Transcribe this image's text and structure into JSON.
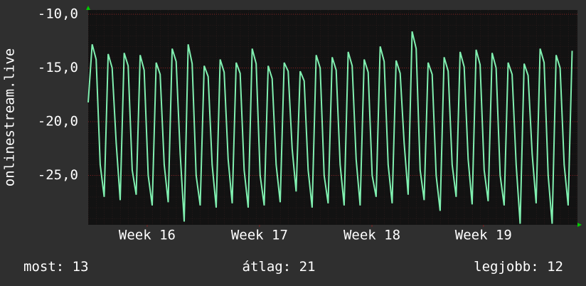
{
  "chart_data": {
    "type": "line",
    "y_label": "onlinestream.live",
    "x": [
      0,
      6,
      12,
      18,
      24,
      30,
      36,
      42,
      48,
      54,
      60,
      66,
      72,
      78,
      84,
      90,
      96,
      102,
      108,
      114,
      120,
      126,
      132,
      138,
      144,
      150,
      156,
      162,
      168,
      174,
      180,
      186,
      192,
      198,
      204,
      210,
      216,
      222,
      228,
      234,
      240,
      246,
      252,
      258,
      264,
      270,
      276,
      282,
      288,
      294,
      300,
      306,
      312,
      318,
      324,
      330,
      336,
      342,
      348,
      354,
      360,
      366,
      372,
      378,
      384,
      390,
      396,
      402,
      408,
      414,
      420,
      426,
      432,
      438,
      444,
      450,
      456,
      462,
      468,
      474,
      480,
      486,
      492,
      498,
      504,
      510,
      516,
      522,
      528,
      534,
      540,
      546,
      552,
      558,
      564,
      570,
      576,
      582,
      588,
      594,
      600,
      606,
      612,
      618,
      624,
      630,
      636,
      642,
      648,
      654,
      660,
      666,
      672,
      678,
      684,
      690,
      696,
      702,
      708,
      714,
      720,
      726
    ],
    "xlim": [
      0,
      734
    ],
    "xticks": [
      {
        "value": 88.5,
        "label": "Week 16"
      },
      {
        "value": 257,
        "label": "Week 17"
      },
      {
        "value": 425.7,
        "label": "Week 18"
      },
      {
        "value": 593,
        "label": "Week 19"
      }
    ],
    "series": [
      {
        "color": "#80f0b0",
        "values": [
          -18.2,
          -12.8,
          -14.2,
          -24,
          -27,
          -13.7,
          -15,
          -22,
          -27.3,
          -13.6,
          -14.8,
          -24.5,
          -26.8,
          -13.8,
          -15.2,
          -25,
          -27.8,
          -14.5,
          -15.6,
          -24,
          -27.5,
          -13.2,
          -14.4,
          -23,
          -29.3,
          -12.8,
          -14.6,
          -25,
          -27.8,
          -14.8,
          -15.8,
          -24,
          -28,
          -14.2,
          -15.4,
          -23.5,
          -27.6,
          -14.5,
          -15.5,
          -24.5,
          -28,
          -13.2,
          -14.6,
          -25,
          -27.8,
          -14.8,
          -16,
          -24,
          -27.5,
          -14.5,
          -15.3,
          -22.5,
          -26.5,
          -15.3,
          -16.2,
          -24.5,
          -28,
          -13.8,
          -15,
          -25,
          -27.6,
          -14,
          -15.2,
          -24,
          -27.8,
          -13.5,
          -14.8,
          -23.5,
          -27.8,
          -14.2,
          -15.4,
          -25,
          -27,
          -13,
          -14.4,
          -24,
          -27.6,
          -14.3,
          -15.5,
          -22,
          -26.8,
          -11.6,
          -13.2,
          -24.5,
          -27.3,
          -14.5,
          -15.6,
          -25,
          -28.3,
          -14,
          -15.3,
          -24,
          -27,
          -13.5,
          -14.9,
          -23.5,
          -27.7,
          -13.3,
          -14.7,
          -24.5,
          -27.4,
          -13.6,
          -15,
          -25,
          -27.8,
          -14.5,
          -15.6,
          -24,
          -29.5,
          -14.6,
          -15.7,
          -23,
          -27.6,
          -13.2,
          -14.5,
          -25,
          -29.5,
          -13.8,
          -15,
          -24,
          -27.8,
          -13.4
        ]
      }
    ],
    "ylim": [
      -29.6,
      -9.6
    ],
    "yticks": [
      {
        "value": -10,
        "label": "-10,0"
      },
      {
        "value": -15,
        "label": "-15,0"
      },
      {
        "value": -20,
        "label": "-20,0"
      },
      {
        "value": -25,
        "label": "-25,0"
      }
    ],
    "grid": true,
    "stats": [
      {
        "label": "most:",
        "value": 13
      },
      {
        "label": "átlag:",
        "value": 21
      },
      {
        "label": "legjobb:",
        "value": 12
      }
    ]
  }
}
